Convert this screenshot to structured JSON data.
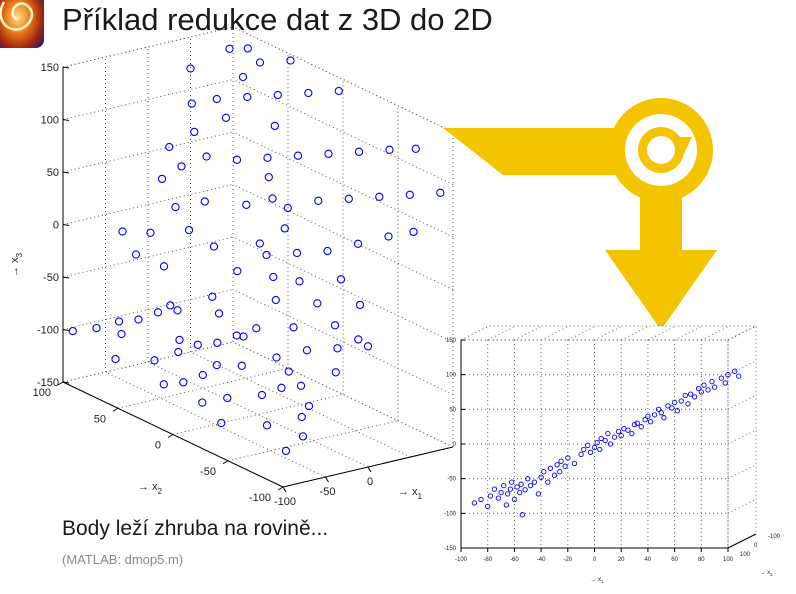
{
  "slide": {
    "title": "Příklad redukce dat z 3D do 2D",
    "caption": "Body leží zhruba na rovině...",
    "subcaption": "(MATLAB: dmop5.m)",
    "accent_color": "#f5c400",
    "marker_color": "#0000ff",
    "icons": [
      "logo-icon",
      "arrow-icon",
      "rotate-icon"
    ]
  },
  "chart_data": [
    {
      "type": "scatter",
      "projection": "3d",
      "xlabel": "→ x1",
      "ylabel": "→ x2",
      "zlabel": "→ x3",
      "xlim": [
        -100,
        100
      ],
      "ylim": [
        -100,
        100
      ],
      "zlim": [
        -150,
        150
      ],
      "x_ticks": [
        "-100",
        "-50",
        "0"
      ],
      "y_ticks": [
        "-100",
        "-50",
        "0",
        "50",
        "100"
      ],
      "z_ticks": [
        "-150",
        "-100",
        "-50",
        "0",
        "50",
        "100",
        "150"
      ],
      "grid": true,
      "points": [
        [
          -95,
          95,
          -100
        ],
        [
          -80,
          85,
          -95
        ],
        [
          -60,
          80,
          -90
        ],
        [
          -50,
          70,
          -85
        ],
        [
          -40,
          60,
          -75
        ],
        [
          -30,
          50,
          -70
        ],
        [
          -90,
          60,
          -110
        ],
        [
          -70,
          40,
          -105
        ],
        [
          -55,
          30,
          -95
        ],
        [
          -45,
          20,
          -85
        ],
        [
          -35,
          10,
          -80
        ],
        [
          -25,
          0,
          -70
        ],
        [
          -15,
          -10,
          -60
        ],
        [
          -85,
          20,
          -115
        ],
        [
          -65,
          0,
          -100
        ],
        [
          -45,
          -20,
          -85
        ],
        [
          -30,
          -40,
          -70
        ],
        [
          -20,
          -60,
          -55
        ],
        [
          -10,
          -80,
          -45
        ],
        [
          -75,
          -30,
          -105
        ],
        [
          -60,
          -50,
          -95
        ],
        [
          -40,
          -70,
          -80
        ],
        [
          -25,
          -90,
          -60
        ],
        [
          -80,
          -70,
          -110
        ],
        [
          -65,
          -90,
          -95
        ],
        [
          -95,
          -40,
          -120
        ],
        [
          -90,
          -95,
          -120
        ],
        [
          -70,
          -95,
          -110
        ],
        [
          -50,
          -85,
          -90
        ],
        [
          -35,
          -55,
          -75
        ],
        [
          -5,
          -95,
          -30
        ],
        [
          0,
          -70,
          -30
        ],
        [
          5,
          -50,
          -20
        ],
        [
          10,
          -30,
          -10
        ],
        [
          -5,
          -20,
          -30
        ],
        [
          -15,
          30,
          -50
        ],
        [
          -20,
          70,
          -40
        ],
        [
          -10,
          90,
          -20
        ],
        [
          0,
          40,
          -10
        ],
        [
          10,
          0,
          0
        ],
        [
          20,
          -20,
          10
        ],
        [
          30,
          -40,
          20
        ],
        [
          40,
          -60,
          35
        ],
        [
          50,
          -80,
          50
        ],
        [
          60,
          -95,
          60
        ],
        [
          15,
          60,
          20
        ],
        [
          25,
          30,
          30
        ],
        [
          35,
          0,
          40
        ],
        [
          45,
          -20,
          55
        ],
        [
          55,
          -40,
          65
        ],
        [
          65,
          -60,
          75
        ],
        [
          75,
          -80,
          85
        ],
        [
          85,
          -100,
          95
        ],
        [
          20,
          85,
          40
        ],
        [
          30,
          70,
          55
        ],
        [
          40,
          50,
          60
        ],
        [
          50,
          30,
          70
        ],
        [
          60,
          10,
          80
        ],
        [
          70,
          -10,
          90
        ],
        [
          80,
          -30,
          100
        ],
        [
          90,
          -50,
          110
        ],
        [
          95,
          -70,
          120
        ],
        [
          -10,
          55,
          0
        ],
        [
          0,
          75,
          10
        ],
        [
          10,
          95,
          25
        ],
        [
          25,
          100,
          50
        ],
        [
          35,
          85,
          70
        ],
        [
          45,
          95,
          90
        ],
        [
          55,
          80,
          100
        ],
        [
          65,
          60,
          110
        ],
        [
          75,
          40,
          120
        ],
        [
          85,
          20,
          130
        ],
        [
          95,
          0,
          140
        ],
        [
          -30,
          100,
          -20
        ],
        [
          -40,
          80,
          -30
        ],
        [
          -20,
          20,
          -60
        ],
        [
          -30,
          -10,
          -65
        ],
        [
          -10,
          -40,
          -45
        ],
        [
          5,
          -10,
          -15
        ],
        [
          15,
          10,
          5
        ],
        [
          60,
          60,
          130
        ],
        [
          70,
          80,
          145
        ],
        [
          80,
          60,
          140
        ],
        [
          90,
          40,
          150
        ],
        [
          50,
          100,
          120
        ],
        [
          40,
          60,
          95
        ],
        [
          30,
          10,
          45
        ],
        [
          20,
          -60,
          5
        ],
        [
          10,
          -85,
          -5
        ],
        [
          -45,
          45,
          -60
        ],
        [
          -55,
          -5,
          -90
        ],
        [
          -75,
          10,
          -110
        ],
        [
          -85,
          -15,
          -115
        ],
        [
          -60,
          25,
          -80
        ],
        [
          -5,
          15,
          -20
        ],
        [
          25,
          -5,
          25
        ],
        [
          45,
          25,
          55
        ],
        [
          65,
          35,
          95
        ],
        [
          85,
          75,
          145
        ],
        [
          -70,
          70,
          -95
        ],
        [
          -50,
          -60,
          -85
        ],
        [
          0,
          -100,
          -35
        ]
      ]
    },
    {
      "type": "scatter",
      "projection": "3d",
      "xlabel": "→ x1",
      "ylabel": "→ x2",
      "xlim": [
        -100,
        100
      ],
      "ylim": [
        -150,
        150
      ],
      "x_ticks": [
        "-100",
        "-80",
        "-60",
        "-40",
        "-20",
        "0",
        "20",
        "40",
        "60",
        "80",
        "100"
      ],
      "y_ticks": [
        "-150",
        "-100",
        "-50",
        "0",
        "50",
        "100",
        "150"
      ],
      "depth_ticks": [
        "-100",
        "0",
        "100"
      ],
      "grid": true,
      "points": [
        [
          -90,
          -85
        ],
        [
          -85,
          -80
        ],
        [
          -80,
          -90
        ],
        [
          -78,
          -75
        ],
        [
          -75,
          -65
        ],
        [
          -72,
          -78
        ],
        [
          -70,
          -70
        ],
        [
          -68,
          -60
        ],
        [
          -66,
          -88
        ],
        [
          -65,
          -72
        ],
        [
          -63,
          -65
        ],
        [
          -62,
          -55
        ],
        [
          -60,
          -80
        ],
        [
          -58,
          -62
        ],
        [
          -56,
          -70
        ],
        [
          -55,
          -58
        ],
        [
          -54,
          -102
        ],
        [
          -52,
          -66
        ],
        [
          -50,
          -50
        ],
        [
          -48,
          -60
        ],
        [
          -45,
          -55
        ],
        [
          -42,
          -72
        ],
        [
          -40,
          -48
        ],
        [
          -38,
          -40
        ],
        [
          -35,
          -55
        ],
        [
          -33,
          -35
        ],
        [
          -30,
          -45
        ],
        [
          -28,
          -30
        ],
        [
          -26,
          -40
        ],
        [
          -25,
          -25
        ],
        [
          -22,
          -32
        ],
        [
          -20,
          -20
        ],
        [
          -15,
          -28
        ],
        [
          -10,
          -15
        ],
        [
          -8,
          -8
        ],
        [
          -5,
          -2
        ],
        [
          -3,
          -12
        ],
        [
          0,
          -5
        ],
        [
          2,
          2
        ],
        [
          4,
          -8
        ],
        [
          5,
          8
        ],
        [
          8,
          5
        ],
        [
          10,
          15
        ],
        [
          12,
          0
        ],
        [
          15,
          10
        ],
        [
          18,
          18
        ],
        [
          20,
          12
        ],
        [
          22,
          22
        ],
        [
          25,
          20
        ],
        [
          28,
          15
        ],
        [
          30,
          28
        ],
        [
          32,
          30
        ],
        [
          35,
          25
        ],
        [
          38,
          35
        ],
        [
          40,
          40
        ],
        [
          42,
          32
        ],
        [
          45,
          42
        ],
        [
          48,
          50
        ],
        [
          50,
          45
        ],
        [
          52,
          38
        ],
        [
          55,
          55
        ],
        [
          58,
          52
        ],
        [
          60,
          60
        ],
        [
          62,
          48
        ],
        [
          65,
          62
        ],
        [
          68,
          70
        ],
        [
          70,
          58
        ],
        [
          72,
          72
        ],
        [
          75,
          68
        ],
        [
          78,
          80
        ],
        [
          80,
          75
        ],
        [
          82,
          85
        ],
        [
          85,
          78
        ],
        [
          88,
          90
        ],
        [
          90,
          82
        ],
        [
          95,
          95
        ],
        [
          98,
          88
        ],
        [
          100,
          100
        ],
        [
          105,
          105
        ],
        [
          108,
          98
        ]
      ]
    }
  ]
}
